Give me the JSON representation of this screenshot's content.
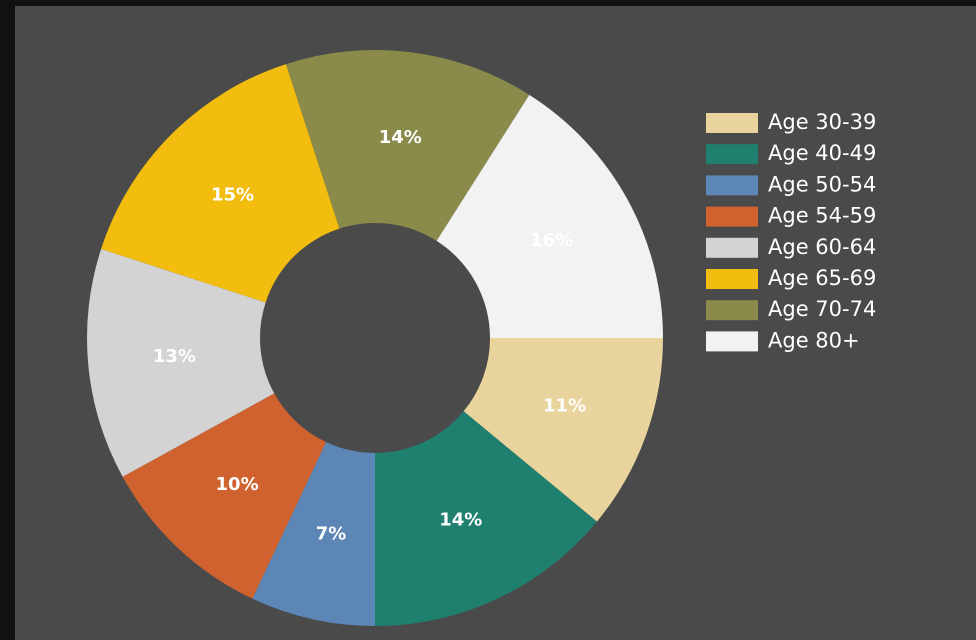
{
  "chart_data": {
    "type": "pie",
    "categories": [
      "Age 30-39",
      "Age 40-49",
      "Age 50-54",
      "Age 54-59",
      "Age 60-64",
      "Age 65-69",
      "Age 70-74",
      "Age 80+"
    ],
    "values": [
      11,
      14,
      7,
      10,
      13,
      15,
      14,
      16
    ],
    "value_labels": [
      "11%",
      "14%",
      "7%",
      "10%",
      "13%",
      "15%",
      "14%",
      "16%"
    ],
    "colors": [
      "#e8d49c",
      "#1f8070",
      "#5b86b5",
      "#d0622f",
      "#d3d3d3",
      "#f2bd0f",
      "#8a8a4a",
      "#f2f2f2"
    ],
    "donut": true
  }
}
